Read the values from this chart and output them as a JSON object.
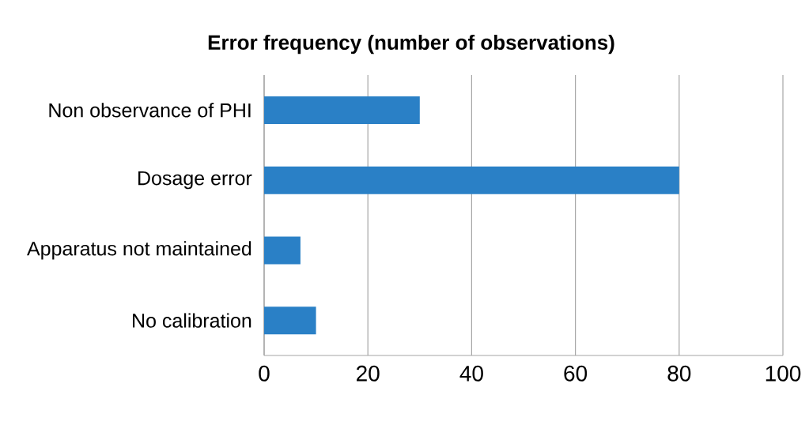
{
  "chart_data": {
    "type": "bar",
    "orientation": "horizontal",
    "title": "Error frequency (number of observations)",
    "categories": [
      "Non observance of PHI",
      "Dosage error",
      "Apparatus not maintained",
      "No calibration"
    ],
    "values": [
      30,
      80,
      7,
      10
    ],
    "color": "#2a80c6",
    "xlim": [
      0,
      100
    ],
    "xticks": [
      0,
      20,
      40,
      60,
      80,
      100
    ],
    "grid": "x"
  }
}
